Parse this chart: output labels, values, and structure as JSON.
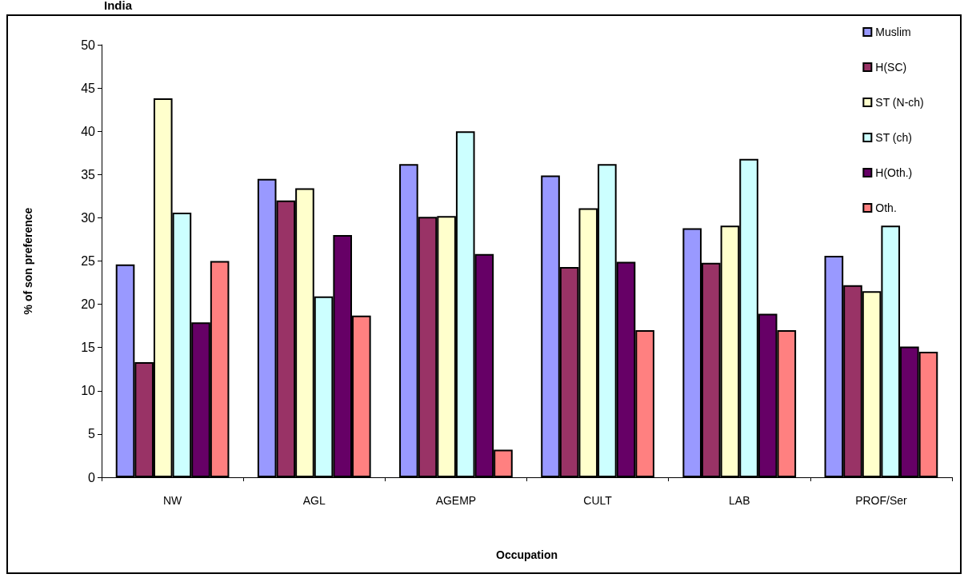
{
  "chart_data": {
    "type": "bar",
    "title": "India",
    "xlabel": "Occupation",
    "ylabel": "% of son preference",
    "categories": [
      "NW",
      "AGL",
      "AGEMP",
      "CULT",
      "LAB",
      "PROF/Ser"
    ],
    "series": [
      {
        "name": "Muslim",
        "color": "#9999ff",
        "values": [
          24.6,
          34.5,
          36.2,
          34.9,
          28.8,
          25.6
        ]
      },
      {
        "name": "H(SC)",
        "color": "#993366",
        "values": [
          13.3,
          32.0,
          30.1,
          24.3,
          24.8,
          22.2
        ]
      },
      {
        "name": "ST (N-ch)",
        "color": "#ffffcc",
        "values": [
          43.8,
          33.4,
          30.2,
          31.1,
          29.1,
          21.5
        ]
      },
      {
        "name": "ST (ch)",
        "color": "#ccffff",
        "values": [
          30.6,
          20.9,
          40.0,
          36.2,
          36.8,
          29.1
        ]
      },
      {
        "name": "H(Oth.)",
        "color": "#660066",
        "values": [
          17.9,
          28.0,
          25.8,
          24.9,
          18.9,
          15.1
        ]
      },
      {
        "name": "Oth.",
        "color": "#ff8080",
        "values": [
          25.0,
          18.7,
          3.2,
          17.0,
          17.0,
          14.5
        ]
      }
    ],
    "ylim": [
      0,
      50
    ],
    "yticks": [
      0,
      5,
      10,
      15,
      20,
      25,
      30,
      35,
      40,
      45,
      50
    ],
    "grid": false,
    "legend": "top right"
  }
}
